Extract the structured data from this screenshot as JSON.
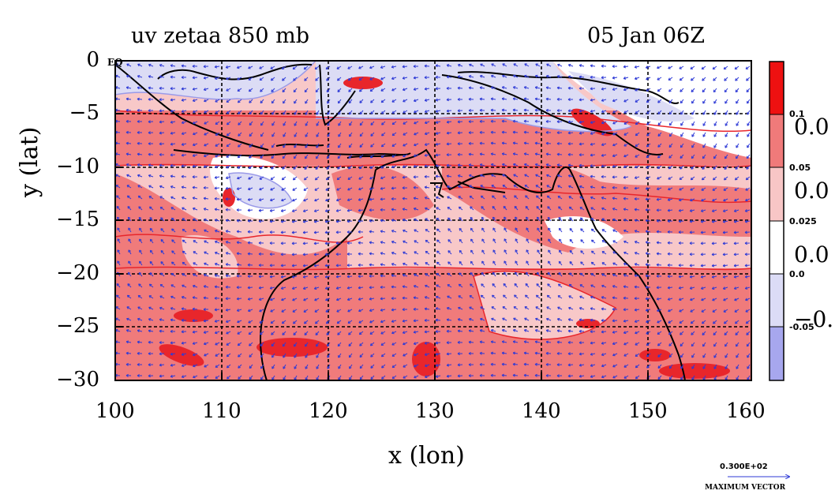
{
  "title": {
    "left": "uv zetaa 850 mb",
    "right": "05 Jan 06Z"
  },
  "axes": {
    "xlabel": "x (lon)",
    "ylabel": "y (lat)",
    "xticks": [
      "100",
      "110",
      "120",
      "130",
      "140",
      "150",
      "160"
    ],
    "yticks": [
      "0",
      "−5",
      "−10",
      "−15",
      "−20",
      "−25",
      "−30"
    ],
    "xlim": [
      100,
      160
    ],
    "ylim": [
      -30,
      0
    ],
    "grid": true,
    "eq_label": "EQ"
  },
  "colorbar": {
    "levels": [
      "0.1",
      "0.05",
      "0.025",
      "0.0",
      "-0.05"
    ],
    "big_labels": [
      "0.0",
      "0.0",
      "0.0",
      "−0."
    ],
    "colors": [
      "#ee1111",
      "#f07a7a",
      "#f8c6c6",
      "#ffffff",
      "#dcdcf6",
      "#a7a7ee"
    ]
  },
  "colors": {
    "strong_positive": "#e8262b",
    "positive": "#f07b7b",
    "weak_positive": "#f8c8c8",
    "neutral": "#ffffff",
    "weak_negative": "#dcdcf5",
    "negative": "#b4b4ee",
    "vectors": "#2e3ad6",
    "coast": "#000000",
    "contour": "#e8262b"
  },
  "max_vector": {
    "value": "0.300E+02",
    "label": "MAXIMUM VECTOR"
  }
}
